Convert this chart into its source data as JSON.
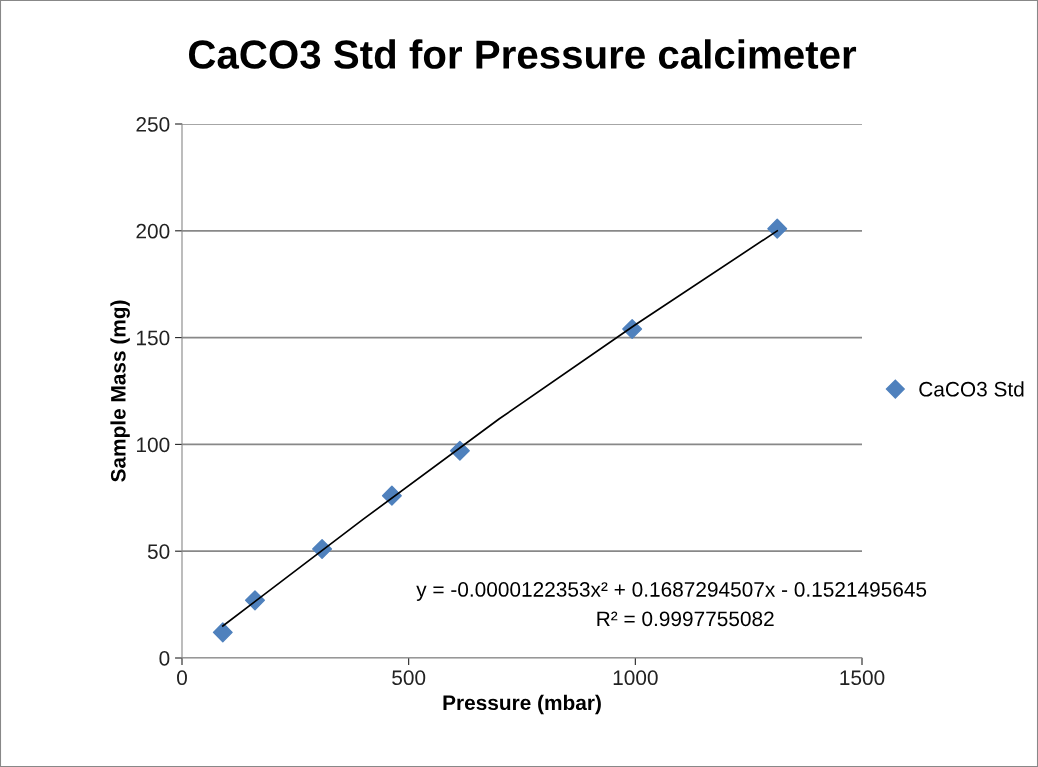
{
  "chart_data": {
    "type": "scatter",
    "title": "CaCO3 Std for Pressure calcimeter",
    "xlabel": "Pressure (mbar)",
    "ylabel": "Sample Mass (mg)",
    "series": [
      {
        "name": "CaCO3 Std",
        "color": "#4f81bd",
        "marker": "diamond",
        "x": [
          90,
          161,
          309,
          463,
          613,
          993,
          1313
        ],
        "values": [
          12,
          27,
          51,
          76,
          97,
          154,
          201
        ]
      },
      {
        "type": "line",
        "color": "#000000",
        "marker": "none",
        "line_style": "solid",
        "x": [
          90,
          400,
          700,
          1000,
          1313
        ],
        "values": [
          15,
          65,
          112,
          156,
          200
        ]
      }
    ],
    "xlim": [
      0,
      1500
    ],
    "xticks": [
      0,
      500,
      1000,
      1500
    ],
    "ylim": [
      0,
      250
    ],
    "yticks": [
      0,
      50,
      100,
      150,
      200,
      250
    ],
    "grid": "y",
    "legend": "right",
    "annotations": [
      "y = -0.0000122353x² + 0.1687294507x - 0.1521495645",
      "R² = 0.9997755082"
    ]
  }
}
